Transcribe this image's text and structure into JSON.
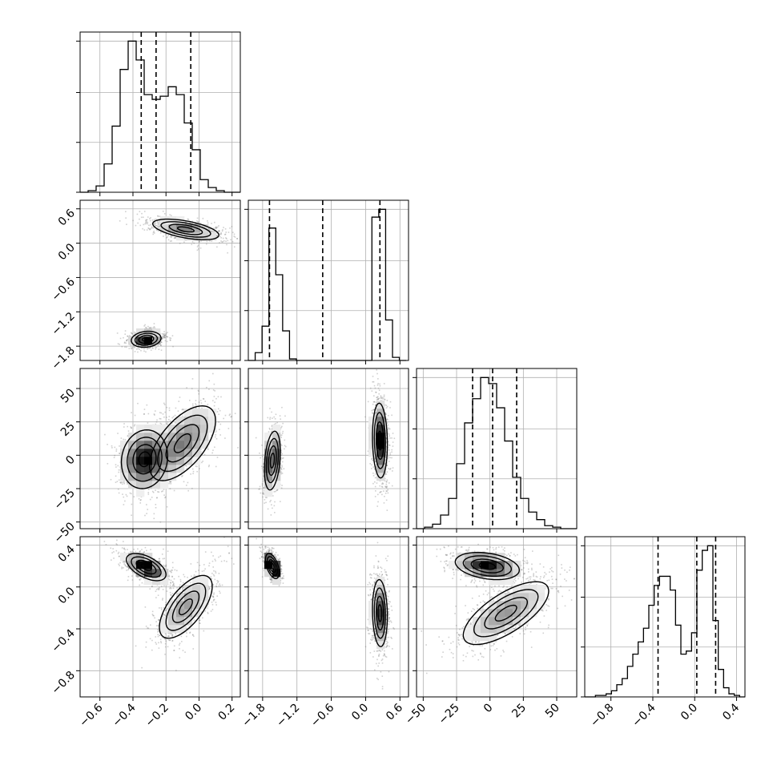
{
  "chart_data": {
    "type": "corner",
    "grid": true,
    "parameters": [
      {
        "id": "p0",
        "range": [
          -0.72,
          0.25
        ],
        "ticks": [
          -0.6,
          -0.4,
          -0.2,
          0.0,
          0.2
        ],
        "tick_labels": [
          "−0.6",
          "−0.4",
          "−0.2",
          "0.0",
          "0.2"
        ],
        "quantiles": [
          -0.35,
          -0.26,
          -0.05
        ],
        "hist": {
          "edges": [
            -0.72,
            -0.6715,
            -0.623,
            -0.5745,
            -0.526,
            -0.4775,
            -0.429,
            -0.3805,
            -0.332,
            -0.2835,
            -0.235,
            -0.1865,
            -0.138,
            -0.0895,
            -0.041,
            0.0075,
            0.056,
            0.1045,
            0.153,
            0.2015,
            0.25
          ],
          "counts": [
            0.0,
            0.01,
            0.04,
            0.18,
            0.42,
            0.78,
            0.96,
            0.84,
            0.62,
            0.59,
            0.61,
            0.67,
            0.62,
            0.44,
            0.27,
            0.08,
            0.03,
            0.01,
            0.0,
            0.0
          ]
        }
      },
      {
        "id": "p1",
        "range": [
          -2.05,
          0.75
        ],
        "ticks": [
          -1.8,
          -1.2,
          -0.6,
          0.0,
          0.6
        ],
        "tick_labels": [
          "−1.8",
          "−1.2",
          "−0.6",
          "0.0",
          "0.6"
        ],
        "quantiles": [
          -1.68,
          -0.75,
          0.25
        ],
        "hist": {
          "edges": [
            -2.05,
            -1.93,
            -1.81,
            -1.69,
            -1.57,
            -1.45,
            -1.33,
            -1.21,
            -1.09,
            -0.97,
            -0.85,
            -0.73,
            -0.61,
            -0.49,
            -0.37,
            -0.25,
            -0.13,
            -0.01,
            0.11,
            0.23,
            0.35,
            0.47,
            0.59,
            0.71
          ],
          "counts": [
            0.0,
            0.05,
            0.22,
            0.85,
            0.55,
            0.19,
            0.01,
            0.0,
            0.0,
            0.0,
            0.0,
            0.0,
            0.0,
            0.0,
            0.0,
            0.0,
            0.0,
            0.0,
            0.92,
            0.97,
            0.26,
            0.02,
            0.0
          ]
        }
      },
      {
        "id": "p2",
        "range": [
          -55,
          65
        ],
        "ticks": [
          -50,
          -25,
          0,
          25,
          50
        ],
        "tick_labels": [
          "−50",
          "−25",
          "0",
          "25",
          "50"
        ],
        "quantiles": [
          -13,
          2,
          20
        ],
        "hist": {
          "edges": [
            -55,
            -49,
            -43,
            -37,
            -31,
            -25,
            -19,
            -13,
            -7,
            -1,
            5,
            11,
            17,
            23,
            29,
            35,
            41,
            47,
            53,
            59,
            65
          ],
          "counts": [
            0.0,
            0.01,
            0.03,
            0.09,
            0.2,
            0.43,
            0.7,
            0.86,
            1.0,
            0.96,
            0.8,
            0.58,
            0.34,
            0.2,
            0.11,
            0.06,
            0.02,
            0.01,
            0.0,
            0.0
          ]
        }
      },
      {
        "id": "p3",
        "range": [
          -1.05,
          0.48
        ],
        "ticks": [
          -0.8,
          -0.4,
          0.0,
          0.4
        ],
        "tick_labels": [
          "−0.8",
          "−0.4",
          "0.0",
          "0.4"
        ],
        "quantiles": [
          -0.35,
          0.02,
          0.2
        ],
        "hist": {
          "edges": [
            -1.05,
            -0.999,
            -0.948,
            -0.897,
            -0.846,
            -0.795,
            -0.744,
            -0.693,
            -0.642,
            -0.591,
            -0.54,
            -0.489,
            -0.438,
            -0.387,
            -0.336,
            -0.285,
            -0.234,
            -0.183,
            -0.132,
            -0.081,
            -0.03,
            0.021,
            0.072,
            0.123,
            0.174,
            0.225,
            0.276,
            0.327,
            0.378,
            0.429,
            0.48
          ],
          "counts": [
            0.0,
            0.0,
            0.01,
            0.01,
            0.02,
            0.04,
            0.08,
            0.12,
            0.2,
            0.28,
            0.36,
            0.45,
            0.6,
            0.73,
            0.79,
            0.79,
            0.7,
            0.47,
            0.28,
            0.3,
            0.42,
            0.83,
            0.96,
            0.99,
            0.5,
            0.18,
            0.06,
            0.02,
            0.01,
            0.0
          ]
        }
      }
    ],
    "blobs": [
      {
        "x": "p0",
        "y": "p1",
        "comps": [
          {
            "w": 0.45,
            "mx": -0.32,
            "my": -1.68,
            "sx": 0.045,
            "sy": 0.07,
            "r": 0.15
          },
          {
            "w": 0.55,
            "mx": -0.08,
            "my": 0.24,
            "sx": 0.1,
            "sy": 0.09,
            "r": -0.55
          }
        ]
      },
      {
        "x": "p0",
        "y": "p2",
        "comps": [
          {
            "w": 0.55,
            "mx": -0.33,
            "my": -3,
            "sx": 0.07,
            "sy": 11,
            "r": 0.1
          },
          {
            "w": 0.45,
            "mx": -0.1,
            "my": 9,
            "sx": 0.1,
            "sy": 14,
            "r": 0.6
          }
        ]
      },
      {
        "x": "p1",
        "y": "p2",
        "comps": [
          {
            "w": 0.45,
            "mx": -1.63,
            "my": -4,
            "sx": 0.07,
            "sy": 11,
            "r": 0.3
          },
          {
            "w": 0.55,
            "mx": 0.25,
            "my": 11,
            "sx": 0.065,
            "sy": 14,
            "r": -0.1
          }
        ]
      },
      {
        "x": "p0",
        "y": "p3",
        "comps": [
          {
            "w": 0.5,
            "mx": -0.32,
            "my": 0.19,
            "sx": 0.06,
            "sy": 0.065,
            "r": -0.55
          },
          {
            "w": 0.5,
            "mx": -0.08,
            "my": -0.19,
            "sx": 0.08,
            "sy": 0.15,
            "r": 0.65
          }
        ]
      },
      {
        "x": "p1",
        "y": "p3",
        "comps": [
          {
            "w": 0.45,
            "mx": -1.63,
            "my": 0.2,
            "sx": 0.06,
            "sy": 0.06,
            "r": -0.5
          },
          {
            "w": 0.55,
            "mx": 0.25,
            "my": -0.25,
            "sx": 0.065,
            "sy": 0.16,
            "r": -0.1
          }
        ]
      },
      {
        "x": "p2",
        "y": "p3",
        "comps": [
          {
            "w": 0.5,
            "mx": -2,
            "my": 0.2,
            "sx": 12,
            "sy": 0.065,
            "r": -0.3
          },
          {
            "w": 0.5,
            "mx": 12,
            "my": -0.25,
            "sx": 16,
            "sy": 0.15,
            "r": 0.7
          }
        ]
      }
    ]
  }
}
